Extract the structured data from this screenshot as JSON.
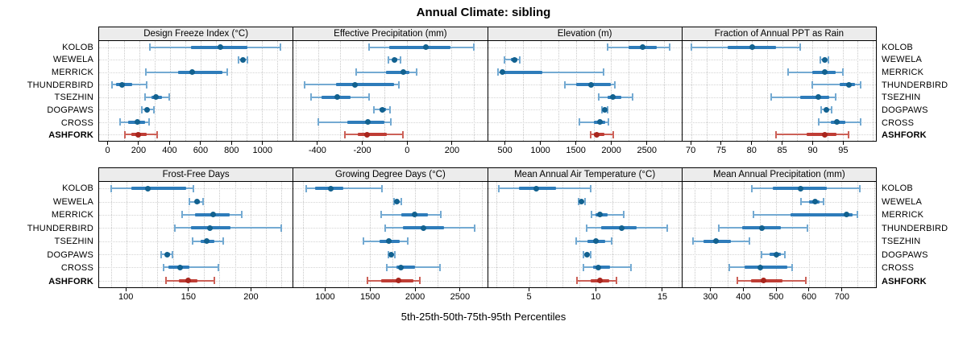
{
  "title": "Annual Climate: sibling",
  "footer": "5th-25th-50th-75th-95th Percentiles",
  "highlight_site": "ASHFORK",
  "colors": {
    "site_light": "#74aad2",
    "site_mid": "#2e7cba",
    "site_dot": "#12618f",
    "highlight_light": "#cc6158",
    "highlight_mid": "#bf3d35",
    "highlight_dot": "#a8251d",
    "grid": "#c8c8c8",
    "strip_bg": "#ececec",
    "border": "#000000"
  },
  "chart_data": {
    "type": "percentile-dotplot",
    "percentiles": [
      "5th",
      "25th",
      "50th",
      "75th",
      "95th"
    ],
    "legend_note": "values per site are [p5, p25, p50, p75, p95]; ASHFORK highlighted red",
    "sites": [
      "KOLOB",
      "WEWELA",
      "MERRICK",
      "THUNDERBIRD",
      "TSEZHIN",
      "DOGPAWS",
      "CROSS",
      "ASHFORK"
    ],
    "panels": [
      {
        "title": "Design Freeze Index (°C)",
        "xlim": [
          -60,
          1200
        ],
        "ticks": [
          0,
          200,
          400,
          600,
          800,
          1000
        ],
        "grid": {
          "from": 0,
          "to": 1100,
          "step": 100
        },
        "values": [
          [
            270,
            540,
            727,
            905,
            1118
          ],
          [
            848,
            868,
            878,
            890,
            903
          ],
          [
            245,
            452,
            548,
            742,
            773
          ],
          [
            25,
            50,
            90,
            155,
            250
          ],
          [
            240,
            280,
            310,
            350,
            396
          ],
          [
            220,
            240,
            252,
            265,
            295
          ],
          [
            75,
            130,
            190,
            240,
            265
          ],
          [
            108,
            148,
            196,
            252,
            317
          ]
        ]
      },
      {
        "title": "Effective Precipitation (mm)",
        "xlim": [
          -510,
          360
        ],
        "ticks": [
          -400,
          -200,
          0,
          200
        ],
        "grid": {
          "from": -500,
          "to": 300,
          "step": 100
        },
        "values": [
          [
            -170,
            -80,
            85,
            195,
            300
          ],
          [
            -85,
            -65,
            -55,
            -45,
            -28
          ],
          [
            -230,
            -95,
            -18,
            10,
            42
          ],
          [
            -460,
            -320,
            -235,
            -60,
            -35
          ],
          [
            -430,
            -385,
            -315,
            -255,
            -170
          ],
          [
            -150,
            -125,
            -110,
            -95,
            -78
          ],
          [
            -400,
            -270,
            -175,
            -100,
            -72
          ],
          [
            -280,
            -220,
            -180,
            -90,
            -18
          ]
        ]
      },
      {
        "title": "Elevation (m)",
        "xlim": [
          250,
          3000
        ],
        "ticks": [
          500,
          1000,
          1500,
          2000,
          2500
        ],
        "grid": {
          "from": 500,
          "to": 2750,
          "step": 250
        },
        "values": [
          [
            1950,
            2250,
            2450,
            2650,
            2830
          ],
          [
            480,
            580,
            630,
            670,
            705
          ],
          [
            395,
            430,
            460,
            1020,
            1890
          ],
          [
            1340,
            1500,
            1710,
            1990,
            2055
          ],
          [
            1825,
            1950,
            2025,
            2150,
            2300
          ],
          [
            1870,
            1895,
            1915,
            1935,
            1955
          ],
          [
            1550,
            1750,
            1845,
            1920,
            1965
          ],
          [
            1710,
            1760,
            1800,
            1900,
            2025
          ]
        ]
      },
      {
        "title": "Fraction of Annual PPT as Rain",
        "xlim": [
          68.5,
          100.5
        ],
        "ticks": [
          70,
          75,
          80,
          85,
          90,
          95
        ],
        "grid": {
          "from": 70,
          "to": 100,
          "step": 2.5
        },
        "values": [
          [
            70,
            76,
            80,
            84,
            88
          ],
          [
            91.3,
            91.8,
            92.1,
            92.4,
            92.7
          ],
          [
            86,
            90,
            92,
            93.8,
            95
          ],
          [
            90,
            94.5,
            96,
            97,
            98
          ],
          [
            83.2,
            88,
            91,
            92.8,
            93.9
          ],
          [
            91.5,
            92,
            92.3,
            92.7,
            93.2
          ],
          [
            91,
            93,
            94,
            95.5,
            98
          ],
          [
            84,
            89,
            92,
            94,
            96
          ]
        ]
      },
      {
        "title": "Frost-Free Days",
        "xlim": [
          78,
          234
        ],
        "ticks": [
          100,
          150,
          200
        ],
        "grid": {
          "from": 87.5,
          "to": 225,
          "step": 12.5
        },
        "values": [
          [
            88,
            104,
            117,
            148,
            154
          ],
          [
            151,
            155,
            157,
            159,
            162
          ],
          [
            145,
            155,
            170,
            183,
            193
          ],
          [
            139,
            152,
            167,
            184,
            225
          ],
          [
            153,
            160,
            165,
            171,
            178
          ],
          [
            128,
            131,
            133,
            135,
            137
          ],
          [
            130,
            134,
            143,
            151,
            174
          ],
          [
            132,
            142,
            150,
            157,
            171
          ]
        ]
      },
      {
        "title": "Growing Degree Days (°C)",
        "xlim": [
          640,
          2810
        ],
        "ticks": [
          1000,
          1500,
          2000,
          2500
        ],
        "grid": {
          "from": 750,
          "to": 2750,
          "step": 250
        },
        "values": [
          [
            780,
            885,
            1060,
            1200,
            1630
          ],
          [
            1765,
            1785,
            1800,
            1815,
            1850
          ],
          [
            1620,
            1850,
            1995,
            2150,
            2290
          ],
          [
            1665,
            1870,
            2100,
            2330,
            2670
          ],
          [
            1420,
            1600,
            1705,
            1830,
            1920
          ],
          [
            1700,
            1720,
            1735,
            1750,
            1775
          ],
          [
            1685,
            1790,
            1845,
            2000,
            2285
          ],
          [
            1470,
            1620,
            1815,
            1980,
            2055
          ]
        ]
      },
      {
        "title": "Mean Annual Air Temperature (°C)",
        "xlim": [
          1.85,
          16.5
        ],
        "ticks": [
          5,
          10,
          15
        ],
        "grid": {
          "from": 2.5,
          "to": 16.25,
          "step": 1.25
        },
        "values": [
          [
            2.7,
            4.2,
            5.5,
            7.0,
            9.6
          ],
          [
            8.7,
            8.85,
            8.95,
            9.05,
            9.2
          ],
          [
            9.7,
            10.0,
            10.3,
            10.9,
            12.1
          ],
          [
            9.3,
            10.4,
            12.0,
            13.1,
            15.4
          ],
          [
            8.5,
            9.4,
            10.0,
            10.7,
            11.2
          ],
          [
            9.1,
            9.25,
            9.35,
            9.5,
            9.65
          ],
          [
            9.1,
            9.8,
            10.2,
            11.1,
            12.7
          ],
          [
            8.6,
            9.6,
            10.3,
            11.0,
            11.6
          ]
        ]
      },
      {
        "title": "Mean Annual Precipitation (mm)",
        "xlim": [
          212,
          806
        ],
        "ticks": [
          300,
          400,
          500,
          600,
          700
        ],
        "grid": {
          "from": 250,
          "to": 800,
          "step": 50
        },
        "values": [
          [
            425,
            490,
            575,
            655,
            757
          ],
          [
            575,
            600,
            620,
            632,
            645
          ],
          [
            430,
            545,
            715,
            735,
            748
          ],
          [
            325,
            395,
            455,
            515,
            595
          ],
          [
            245,
            276,
            315,
            360,
            418
          ],
          [
            455,
            480,
            500,
            515,
            527
          ],
          [
            356,
            403,
            450,
            535,
            549
          ],
          [
            380,
            422,
            460,
            520,
            590
          ]
        ]
      }
    ]
  }
}
